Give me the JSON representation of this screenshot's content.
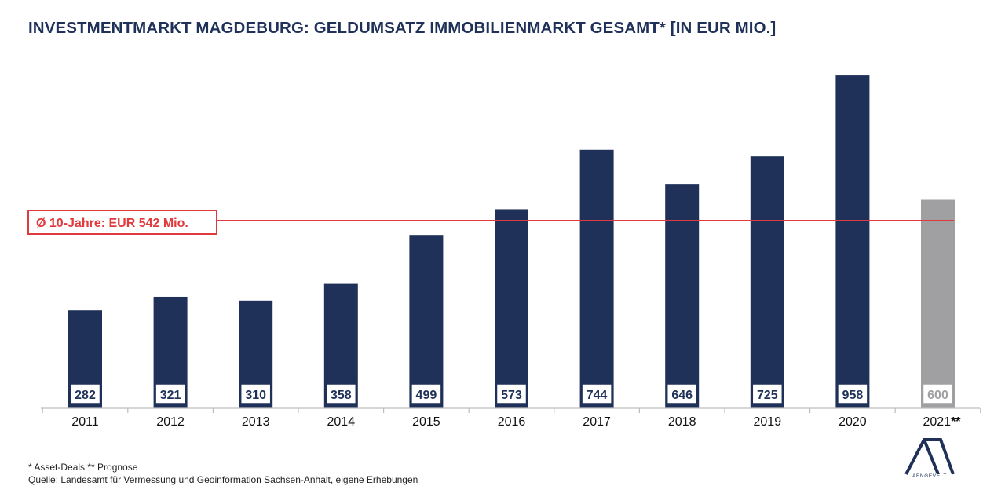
{
  "title": "INVESTMENTMARKT MAGDEBURG: GELDUMSATZ IMMOBILIENMARKT GESAMT* [IN EUR MIO.]",
  "footnotes": {
    "line1": "* Asset-Deals ** Prognose",
    "line2": "Quelle: Landesamt für Vermessung und Geoinformation Sachsen-Anhalt, eigene Erhebungen"
  },
  "logo": {
    "text": "AENGEVELT",
    "icon": "aengevelt-logo-icon"
  },
  "colors": {
    "bar": "#1f3158",
    "forecast_bar": "#a0a0a2",
    "average_line": "#e03a3e",
    "title": "#1f3158"
  },
  "chart_data": {
    "type": "bar",
    "title": "INVESTMENTMARKT MAGDEBURG: GELDUMSATZ IMMOBILIENMARKT GESAMT* [IN EUR MIO.]",
    "xlabel": "",
    "ylabel": "",
    "categories": [
      "2011",
      "2012",
      "2013",
      "2014",
      "2015",
      "2016",
      "2017",
      "2018",
      "2019",
      "2020",
      "2021**"
    ],
    "values": [
      282,
      321,
      310,
      358,
      499,
      573,
      744,
      646,
      725,
      958,
      600
    ],
    "value_labels": [
      "282",
      "321",
      "310",
      "358",
      "499",
      "573",
      "744",
      "646",
      "725",
      "958",
      "600"
    ],
    "forecast": [
      false,
      false,
      false,
      false,
      false,
      false,
      false,
      false,
      false,
      false,
      true
    ],
    "ylim": [
      0,
      1000
    ],
    "grid": false,
    "average_line": {
      "value": 542,
      "label": "Ø 10-Jahre: EUR 542 Mio."
    }
  }
}
